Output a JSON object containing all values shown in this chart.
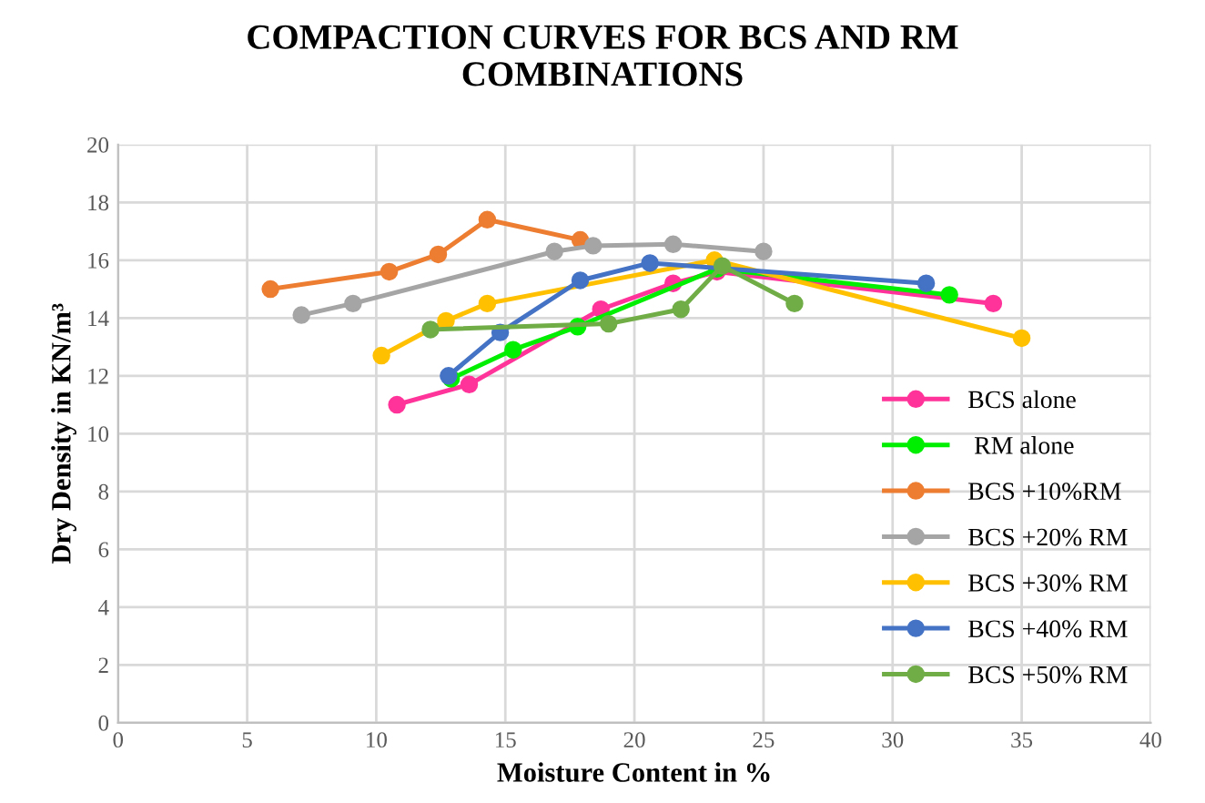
{
  "chart_data": {
    "type": "line",
    "title": "COMPACTION CURVES FOR BCS AND RM\nCOMBINATIONS",
    "xlabel": "Moisture Content in %",
    "ylabel": "Dry Density in KN/m³",
    "xlim": [
      0,
      40
    ],
    "xticks": [
      0,
      5,
      10,
      15,
      20,
      25,
      30,
      35,
      40
    ],
    "ylim": [
      0,
      20
    ],
    "yticks": [
      0,
      2,
      4,
      6,
      8,
      10,
      12,
      14,
      16,
      18,
      20
    ],
    "grid": true,
    "legend": "bottom right",
    "marker": "circle",
    "line_style": "solid",
    "series": [
      {
        "name": "BCS alone",
        "color": "#ff3399",
        "x": [
          10.8,
          13.6,
          18.7,
          21.5,
          23.2,
          33.9
        ],
        "values": [
          11.0,
          11.7,
          14.3,
          15.2,
          15.6,
          14.5
        ]
      },
      {
        "name": " RM alone",
        "color": "#00ee00",
        "x": [
          12.9,
          15.3,
          17.8,
          23.2,
          32.2
        ],
        "values": [
          11.9,
          12.9,
          13.7,
          15.7,
          14.8
        ]
      },
      {
        "name": "BCS +10%RM",
        "color": "#ed7d31",
        "x": [
          5.9,
          10.5,
          12.4,
          14.3,
          17.9
        ],
        "values": [
          15.0,
          15.6,
          16.2,
          17.4,
          16.7
        ]
      },
      {
        "name": "BCS +20% RM",
        "color": "#a5a5a5",
        "x": [
          7.1,
          9.1,
          16.9,
          18.4,
          21.5,
          25.0
        ],
        "values": [
          14.1,
          14.5,
          16.3,
          16.5,
          16.55,
          16.3
        ]
      },
      {
        "name": "BCS +30% RM",
        "color": "#ffc000",
        "x": [
          10.2,
          12.7,
          14.3,
          23.1,
          35.0
        ],
        "values": [
          12.7,
          13.9,
          14.5,
          16.0,
          13.3
        ]
      },
      {
        "name": "BCS +40% RM",
        "color": "#4472c4",
        "x": [
          12.8,
          14.8,
          17.9,
          20.6,
          31.3
        ],
        "values": [
          12.0,
          13.5,
          15.3,
          15.9,
          15.2
        ]
      },
      {
        "name": "BCS +50% RM",
        "color": "#70ad47",
        "x": [
          12.1,
          19.0,
          21.8,
          23.4,
          26.2
        ],
        "values": [
          13.6,
          13.8,
          14.3,
          15.8,
          14.5
        ]
      }
    ]
  }
}
